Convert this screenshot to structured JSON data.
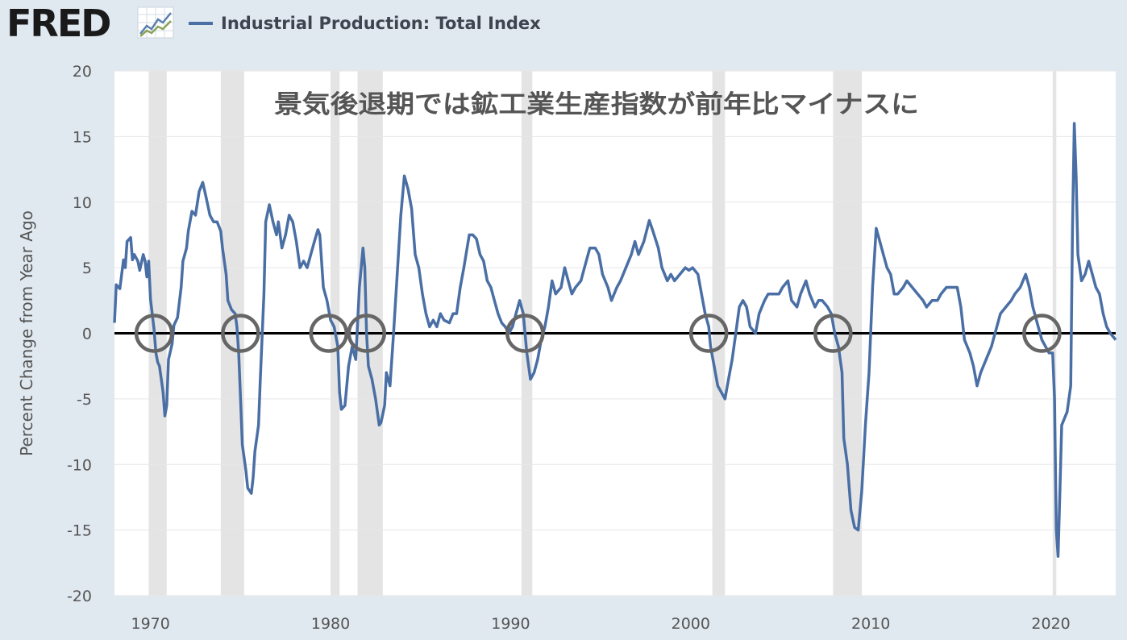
{
  "brand": {
    "logo_text": "FRED",
    "logo_icon": "line-chart-icon"
  },
  "chart_data": {
    "type": "line",
    "title": "",
    "legend": [
      "Industrial Production: Total Index"
    ],
    "ylabel": "Percent Change from Year Ago",
    "xlabel": "",
    "xlim": [
      1968.0,
      2023.6
    ],
    "ylim": [
      -20,
      20
    ],
    "yticks": [
      20,
      15,
      10,
      5,
      0,
      -5,
      -10,
      -15,
      -20
    ],
    "xticks": [
      1970,
      1980,
      1990,
      2000,
      2010,
      2020
    ],
    "annotation": "景気後退期では鉱工業生産指数が前年比マイナスに",
    "zero_line": true,
    "line_color": "#4a6fa5",
    "recessions": [
      [
        1969.9,
        1970.9
      ],
      [
        1973.9,
        1975.2
      ],
      [
        1980.0,
        1980.5
      ],
      [
        1981.5,
        1982.9
      ],
      [
        1990.6,
        1991.2
      ],
      [
        2001.2,
        2001.9
      ],
      [
        2007.9,
        2009.5
      ],
      [
        2020.1,
        2020.3
      ]
    ],
    "circle_markers": [
      1970.2,
      1975.0,
      1979.9,
      1982.0,
      1990.8,
      2001.0,
      2007.9,
      2019.5
    ],
    "series": [
      {
        "name": "Industrial Production: Total Index",
        "points": [
          [
            1968.0,
            0.8
          ],
          [
            1968.1,
            3.7
          ],
          [
            1968.3,
            3.4
          ],
          [
            1968.5,
            5.6
          ],
          [
            1968.6,
            5.0
          ],
          [
            1968.7,
            7.0
          ],
          [
            1968.9,
            7.3
          ],
          [
            1969.0,
            5.6
          ],
          [
            1969.1,
            6.0
          ],
          [
            1969.3,
            5.5
          ],
          [
            1969.4,
            4.8
          ],
          [
            1969.6,
            6.0
          ],
          [
            1969.7,
            5.5
          ],
          [
            1969.8,
            4.3
          ],
          [
            1969.9,
            5.5
          ],
          [
            1970.0,
            2.6
          ],
          [
            1970.2,
            0.3
          ],
          [
            1970.3,
            -1.5
          ],
          [
            1970.4,
            -2.2
          ],
          [
            1970.5,
            -2.5
          ],
          [
            1970.6,
            -3.5
          ],
          [
            1970.7,
            -4.5
          ],
          [
            1970.8,
            -6.3
          ],
          [
            1970.9,
            -5.5
          ],
          [
            1971.0,
            -2.0
          ],
          [
            1971.2,
            -0.8
          ],
          [
            1971.3,
            0.6
          ],
          [
            1971.5,
            1.2
          ],
          [
            1971.7,
            3.5
          ],
          [
            1971.8,
            5.5
          ],
          [
            1972.0,
            6.5
          ],
          [
            1972.1,
            7.8
          ],
          [
            1972.3,
            9.3
          ],
          [
            1972.5,
            9.0
          ],
          [
            1972.7,
            10.8
          ],
          [
            1972.9,
            11.5
          ],
          [
            1973.1,
            10.3
          ],
          [
            1973.3,
            9.0
          ],
          [
            1973.5,
            8.5
          ],
          [
            1973.7,
            8.5
          ],
          [
            1973.9,
            7.8
          ],
          [
            1974.0,
            6.5
          ],
          [
            1974.2,
            4.5
          ],
          [
            1974.3,
            2.5
          ],
          [
            1974.5,
            1.8
          ],
          [
            1974.7,
            1.5
          ],
          [
            1974.8,
            0.5
          ],
          [
            1974.9,
            -1.5
          ],
          [
            1975.0,
            -5.0
          ],
          [
            1975.1,
            -8.5
          ],
          [
            1975.3,
            -10.5
          ],
          [
            1975.4,
            -11.8
          ],
          [
            1975.6,
            -12.2
          ],
          [
            1975.7,
            -11.0
          ],
          [
            1975.8,
            -9.0
          ],
          [
            1976.0,
            -7.0
          ],
          [
            1976.1,
            -3.5
          ],
          [
            1976.3,
            3.0
          ],
          [
            1976.4,
            8.5
          ],
          [
            1976.6,
            9.8
          ],
          [
            1976.8,
            8.5
          ],
          [
            1977.0,
            7.5
          ],
          [
            1977.1,
            8.5
          ],
          [
            1977.3,
            6.5
          ],
          [
            1977.5,
            7.5
          ],
          [
            1977.7,
            9.0
          ],
          [
            1977.9,
            8.5
          ],
          [
            1978.1,
            7.0
          ],
          [
            1978.3,
            5.0
          ],
          [
            1978.5,
            5.5
          ],
          [
            1978.7,
            5.0
          ],
          [
            1978.9,
            6.0
          ],
          [
            1979.1,
            7.0
          ],
          [
            1979.3,
            7.9
          ],
          [
            1979.4,
            7.5
          ],
          [
            1979.6,
            3.5
          ],
          [
            1979.8,
            2.5
          ],
          [
            1980.0,
            1.0
          ],
          [
            1980.2,
            0.5
          ],
          [
            1980.4,
            -1.0
          ],
          [
            1980.5,
            -4.5
          ],
          [
            1980.6,
            -5.8
          ],
          [
            1980.8,
            -5.5
          ],
          [
            1981.0,
            -2.5
          ],
          [
            1981.2,
            -1.0
          ],
          [
            1981.4,
            -2.0
          ],
          [
            1981.6,
            3.5
          ],
          [
            1981.8,
            6.5
          ],
          [
            1981.9,
            5.0
          ],
          [
            1982.0,
            0.0
          ],
          [
            1982.1,
            -2.5
          ],
          [
            1982.3,
            -3.5
          ],
          [
            1982.5,
            -5.0
          ],
          [
            1982.7,
            -7.0
          ],
          [
            1982.8,
            -6.8
          ],
          [
            1983.0,
            -5.5
          ],
          [
            1983.1,
            -3.0
          ],
          [
            1983.3,
            -4.0
          ],
          [
            1983.5,
            0.0
          ],
          [
            1983.7,
            4.5
          ],
          [
            1983.9,
            9.0
          ],
          [
            1984.1,
            12.0
          ],
          [
            1984.3,
            11.0
          ],
          [
            1984.5,
            9.5
          ],
          [
            1984.7,
            6.0
          ],
          [
            1984.9,
            5.0
          ],
          [
            1985.1,
            3.0
          ],
          [
            1985.3,
            1.5
          ],
          [
            1985.5,
            0.5
          ],
          [
            1985.7,
            1.0
          ],
          [
            1985.9,
            0.5
          ],
          [
            1986.1,
            1.5
          ],
          [
            1986.3,
            1.0
          ],
          [
            1986.6,
            0.8
          ],
          [
            1986.8,
            1.5
          ],
          [
            1987.0,
            1.5
          ],
          [
            1987.2,
            3.5
          ],
          [
            1987.4,
            5.0
          ],
          [
            1987.7,
            7.5
          ],
          [
            1987.9,
            7.5
          ],
          [
            1988.1,
            7.2
          ],
          [
            1988.3,
            6.0
          ],
          [
            1988.5,
            5.5
          ],
          [
            1988.7,
            4.0
          ],
          [
            1988.9,
            3.5
          ],
          [
            1989.1,
            2.5
          ],
          [
            1989.3,
            1.5
          ],
          [
            1989.5,
            0.8
          ],
          [
            1989.7,
            0.5
          ],
          [
            1989.9,
            0.0
          ],
          [
            1990.1,
            0.5
          ],
          [
            1990.3,
            1.5
          ],
          [
            1990.5,
            2.5
          ],
          [
            1990.7,
            1.5
          ],
          [
            1990.9,
            -1.5
          ],
          [
            1991.1,
            -3.5
          ],
          [
            1991.3,
            -3.0
          ],
          [
            1991.5,
            -2.0
          ],
          [
            1991.7,
            -0.5
          ],
          [
            1991.9,
            0.5
          ],
          [
            1992.1,
            2.0
          ],
          [
            1992.3,
            4.0
          ],
          [
            1992.5,
            3.0
          ],
          [
            1992.8,
            3.5
          ],
          [
            1993.0,
            5.0
          ],
          [
            1993.2,
            4.0
          ],
          [
            1993.4,
            3.0
          ],
          [
            1993.6,
            3.5
          ],
          [
            1993.9,
            4.0
          ],
          [
            1994.1,
            5.0
          ],
          [
            1994.4,
            6.5
          ],
          [
            1994.7,
            6.5
          ],
          [
            1994.9,
            6.0
          ],
          [
            1995.1,
            4.5
          ],
          [
            1995.4,
            3.5
          ],
          [
            1995.6,
            2.5
          ],
          [
            1995.9,
            3.5
          ],
          [
            1996.1,
            4.0
          ],
          [
            1996.4,
            5.0
          ],
          [
            1996.7,
            6.0
          ],
          [
            1996.9,
            7.0
          ],
          [
            1997.1,
            6.0
          ],
          [
            1997.4,
            7.0
          ],
          [
            1997.7,
            8.6
          ],
          [
            1997.9,
            7.8
          ],
          [
            1998.2,
            6.5
          ],
          [
            1998.4,
            5.0
          ],
          [
            1998.7,
            4.0
          ],
          [
            1998.9,
            4.5
          ],
          [
            1999.1,
            4.0
          ],
          [
            1999.4,
            4.5
          ],
          [
            1999.7,
            5.0
          ],
          [
            1999.9,
            4.8
          ],
          [
            2000.1,
            5.0
          ],
          [
            2000.4,
            4.5
          ],
          [
            2000.6,
            3.0
          ],
          [
            2000.8,
            1.5
          ],
          [
            2001.0,
            0.5
          ],
          [
            2001.1,
            -1.0
          ],
          [
            2001.3,
            -2.5
          ],
          [
            2001.5,
            -4.0
          ],
          [
            2001.7,
            -4.5
          ],
          [
            2001.9,
            -5.0
          ],
          [
            2002.1,
            -3.5
          ],
          [
            2002.3,
            -2.0
          ],
          [
            2002.5,
            0.0
          ],
          [
            2002.7,
            2.0
          ],
          [
            2002.9,
            2.5
          ],
          [
            2003.1,
            2.0
          ],
          [
            2003.3,
            0.5
          ],
          [
            2003.6,
            0.0
          ],
          [
            2003.8,
            1.5
          ],
          [
            2004.1,
            2.5
          ],
          [
            2004.3,
            3.0
          ],
          [
            2004.6,
            3.0
          ],
          [
            2004.9,
            3.0
          ],
          [
            2005.1,
            3.5
          ],
          [
            2005.4,
            4.0
          ],
          [
            2005.6,
            2.5
          ],
          [
            2005.9,
            2.0
          ],
          [
            2006.1,
            3.0
          ],
          [
            2006.4,
            4.0
          ],
          [
            2006.6,
            3.0
          ],
          [
            2006.9,
            2.0
          ],
          [
            2007.1,
            2.5
          ],
          [
            2007.3,
            2.5
          ],
          [
            2007.6,
            2.0
          ],
          [
            2007.8,
            1.5
          ],
          [
            2008.0,
            0.0
          ],
          [
            2008.2,
            -1.0
          ],
          [
            2008.4,
            -3.0
          ],
          [
            2008.5,
            -8.0
          ],
          [
            2008.7,
            -10.0
          ],
          [
            2008.9,
            -13.5
          ],
          [
            2009.1,
            -14.8
          ],
          [
            2009.3,
            -15.0
          ],
          [
            2009.5,
            -12.0
          ],
          [
            2009.7,
            -7.0
          ],
          [
            2009.9,
            -3.0
          ],
          [
            2010.1,
            3.5
          ],
          [
            2010.3,
            8.0
          ],
          [
            2010.5,
            7.0
          ],
          [
            2010.7,
            6.0
          ],
          [
            2010.9,
            5.0
          ],
          [
            2011.1,
            4.5
          ],
          [
            2011.3,
            3.0
          ],
          [
            2011.5,
            3.0
          ],
          [
            2011.8,
            3.5
          ],
          [
            2012.0,
            4.0
          ],
          [
            2012.3,
            3.5
          ],
          [
            2012.6,
            3.0
          ],
          [
            2012.9,
            2.5
          ],
          [
            2013.1,
            2.0
          ],
          [
            2013.4,
            2.5
          ],
          [
            2013.7,
            2.5
          ],
          [
            2013.9,
            3.0
          ],
          [
            2014.2,
            3.5
          ],
          [
            2014.5,
            3.5
          ],
          [
            2014.8,
            3.5
          ],
          [
            2015.0,
            2.0
          ],
          [
            2015.2,
            -0.5
          ],
          [
            2015.5,
            -1.5
          ],
          [
            2015.7,
            -2.5
          ],
          [
            2015.9,
            -4.0
          ],
          [
            2016.1,
            -3.0
          ],
          [
            2016.4,
            -2.0
          ],
          [
            2016.7,
            -1.0
          ],
          [
            2016.9,
            0.0
          ],
          [
            2017.2,
            1.5
          ],
          [
            2017.5,
            2.0
          ],
          [
            2017.8,
            2.5
          ],
          [
            2018.0,
            3.0
          ],
          [
            2018.3,
            3.5
          ],
          [
            2018.6,
            4.5
          ],
          [
            2018.8,
            3.5
          ],
          [
            2019.0,
            2.0
          ],
          [
            2019.3,
            0.5
          ],
          [
            2019.5,
            -0.5
          ],
          [
            2019.7,
            -1.0
          ],
          [
            2019.9,
            -1.5
          ],
          [
            2020.1,
            -1.5
          ],
          [
            2020.2,
            -5.0
          ],
          [
            2020.3,
            -15.0
          ],
          [
            2020.4,
            -17.0
          ],
          [
            2020.5,
            -12.0
          ],
          [
            2020.6,
            -7.0
          ],
          [
            2020.9,
            -6.0
          ],
          [
            2021.1,
            -4.0
          ],
          [
            2021.2,
            8.0
          ],
          [
            2021.3,
            16.0
          ],
          [
            2021.4,
            12.0
          ],
          [
            2021.5,
            6.0
          ],
          [
            2021.7,
            4.0
          ],
          [
            2021.9,
            4.5
          ],
          [
            2022.1,
            5.5
          ],
          [
            2022.3,
            4.5
          ],
          [
            2022.5,
            3.5
          ],
          [
            2022.7,
            3.0
          ],
          [
            2022.9,
            1.5
          ],
          [
            2023.1,
            0.5
          ],
          [
            2023.3,
            0.0
          ],
          [
            2023.6,
            -0.5
          ]
        ]
      }
    ]
  }
}
